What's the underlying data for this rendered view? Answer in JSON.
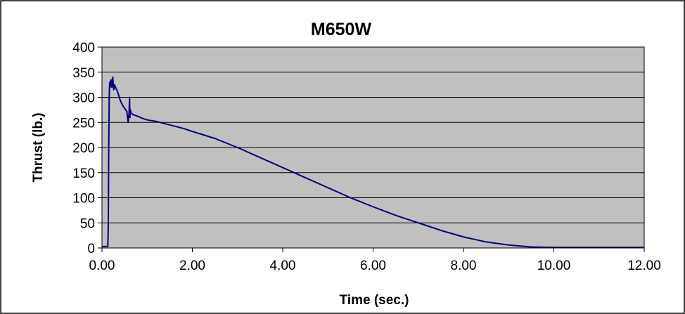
{
  "chart_data": {
    "type": "line",
    "title": "M650W",
    "xlabel": "Time (sec.)",
    "ylabel": "Thrust (lb.)",
    "xlim": [
      0,
      12
    ],
    "ylim": [
      0,
      400
    ],
    "x_ticks": [
      0,
      2,
      4,
      6,
      8,
      10,
      12
    ],
    "x_tick_labels": [
      "0.00",
      "2.00",
      "4.00",
      "6.00",
      "8.00",
      "10.00",
      "12.00"
    ],
    "y_ticks": [
      0,
      50,
      100,
      150,
      200,
      250,
      300,
      350,
      400
    ],
    "y_tick_labels": [
      "0",
      "50",
      "100",
      "150",
      "200",
      "250",
      "300",
      "350",
      "400"
    ],
    "grid": "horizontal",
    "legend": "none",
    "colors": {
      "plot_background": "#C0C0C0",
      "line": "#000080",
      "gridline": "#000000",
      "frame": "#000000"
    },
    "series": [
      {
        "x": [
          0.0,
          0.1,
          0.13,
          0.14,
          0.15,
          0.16,
          0.17,
          0.18,
          0.2,
          0.22,
          0.24,
          0.26,
          0.28,
          0.3,
          0.35,
          0.4,
          0.45,
          0.5,
          0.55,
          0.58,
          0.6,
          0.61,
          0.62,
          0.63,
          0.64,
          0.65,
          0.7,
          0.8,
          0.9,
          1.0,
          1.2,
          1.5,
          1.8,
          2.0,
          2.5,
          3.0,
          3.5,
          4.0,
          4.5,
          5.0,
          5.5,
          6.0,
          6.5,
          7.0,
          7.5,
          8.0,
          8.5,
          9.0,
          9.5,
          10.0,
          10.5,
          10.8,
          11.0,
          12.0
        ],
        "y": [
          3,
          3,
          3,
          50,
          200,
          300,
          330,
          320,
          335,
          320,
          340,
          315,
          325,
          320,
          310,
          295,
          285,
          278,
          272,
          250,
          270,
          300,
          260,
          275,
          270,
          268,
          265,
          262,
          258,
          255,
          252,
          245,
          238,
          232,
          218,
          200,
          180,
          160,
          140,
          120,
          100,
          82,
          65,
          50,
          35,
          22,
          12,
          6,
          2,
          1,
          1,
          1,
          1,
          1
        ]
      }
    ]
  }
}
